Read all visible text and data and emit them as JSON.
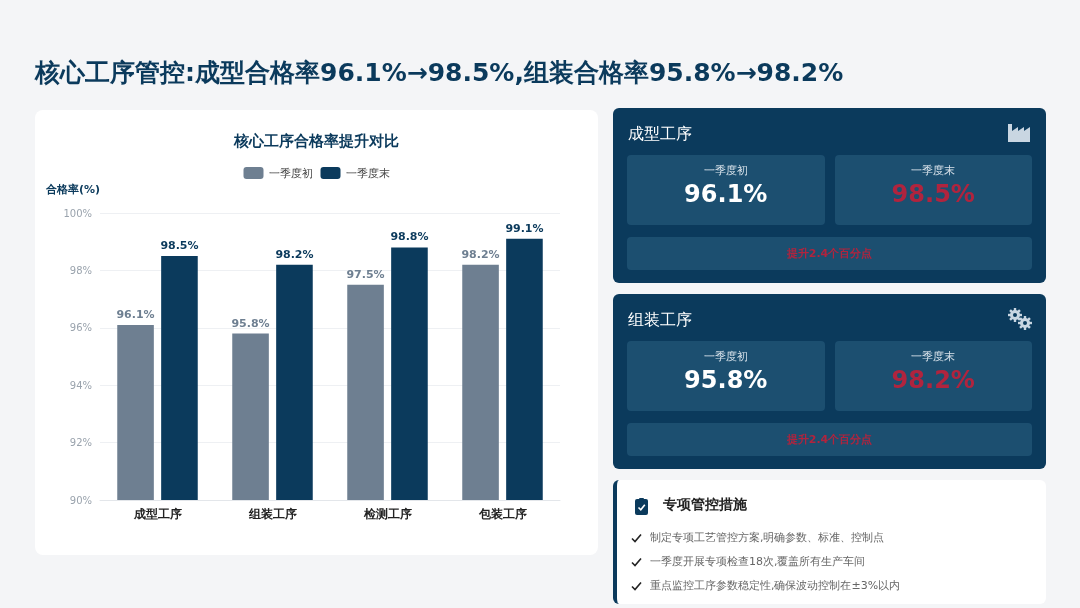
{
  "chart_data": [
    {
      "type": "other",
      "title": "核心工序管控:成型合格率96.1%→98.5%,组装合格率95.8%→98.2%"
    },
    {
      "type": "bar",
      "title": "核心工序合格率提升对比",
      "ylabel": "合格率(%)",
      "categories": [
        "成型工序",
        "组装工序",
        "检测工序",
        "包装工序"
      ],
      "series": [
        {
          "name": "一季度初",
          "color": "#6e7f91",
          "values": [
            96.1,
            95.8,
            97.5,
            98.2
          ],
          "value_labels": [
            "96.1%",
            "95.8%",
            "97.5%",
            "98.2%"
          ]
        },
        {
          "name": "一季度末",
          "color": "#0b3a5c",
          "values": [
            98.5,
            98.2,
            98.8,
            99.1
          ],
          "value_labels": [
            "98.5%",
            "98.2%",
            "98.8%",
            "99.1%"
          ]
        }
      ],
      "ylim": [
        90,
        100
      ],
      "yticks": [
        {
          "value": 90,
          "label": "90%"
        },
        {
          "value": 92,
          "label": "92%"
        },
        {
          "value": 94,
          "label": "94%"
        },
        {
          "value": 96,
          "label": "96%"
        },
        {
          "value": 98,
          "label": "98%"
        },
        {
          "value": 100,
          "label": "100%"
        }
      ],
      "grid": "y",
      "legend": "top"
    },
    {
      "type": "other",
      "title": "成型工序",
      "annotations": [
        "一季度初",
        "96.1%",
        "一季度末",
        "98.5%",
        "提升2.4个百分点"
      ]
    },
    {
      "type": "other",
      "title": "组装工序",
      "annotations": [
        "一季度初",
        "95.8%",
        "一季度末",
        "98.2%",
        "提升2.4个百分点"
      ]
    },
    {
      "type": "other",
      "title": "专项管控措施",
      "annotations": [
        "制定专项工艺管控方案,明确参数、标准、控制点",
        "一季度开展专项检查18次,覆盖所有生产车间",
        "重点监控工序参数稳定性,确保波动控制在±3%以内"
      ]
    }
  ]
}
